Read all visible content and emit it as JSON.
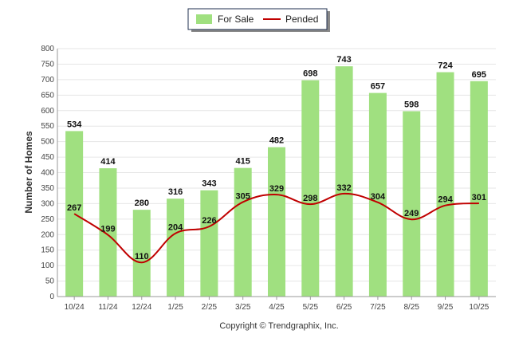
{
  "chart_data": {
    "type": "bar",
    "categories": [
      "10/24",
      "11/24",
      "12/24",
      "1/25",
      "2/25",
      "3/25",
      "4/25",
      "5/25",
      "6/25",
      "7/25",
      "8/25",
      "9/25",
      "10/25"
    ],
    "series": [
      {
        "name": "For Sale",
        "type": "bar",
        "color": "#a0e080",
        "values": [
          534,
          414,
          280,
          316,
          343,
          415,
          482,
          698,
          743,
          657,
          598,
          724,
          695
        ]
      },
      {
        "name": "Pended",
        "type": "line",
        "color": "#c00000",
        "values": [
          267,
          199,
          110,
          204,
          226,
          305,
          329,
          298,
          332,
          304,
          249,
          294,
          301
        ]
      }
    ],
    "ylabel": "Number of Homes",
    "xlabel": "",
    "ylim": [
      0,
      800
    ],
    "yticks": [
      0,
      50,
      100,
      150,
      200,
      250,
      300,
      350,
      400,
      450,
      500,
      550,
      600,
      650,
      700,
      750,
      800
    ],
    "legend_position": "top-center",
    "grid": true
  },
  "footer": {
    "copyright": "Copyright © Trendgraphix, Inc."
  }
}
